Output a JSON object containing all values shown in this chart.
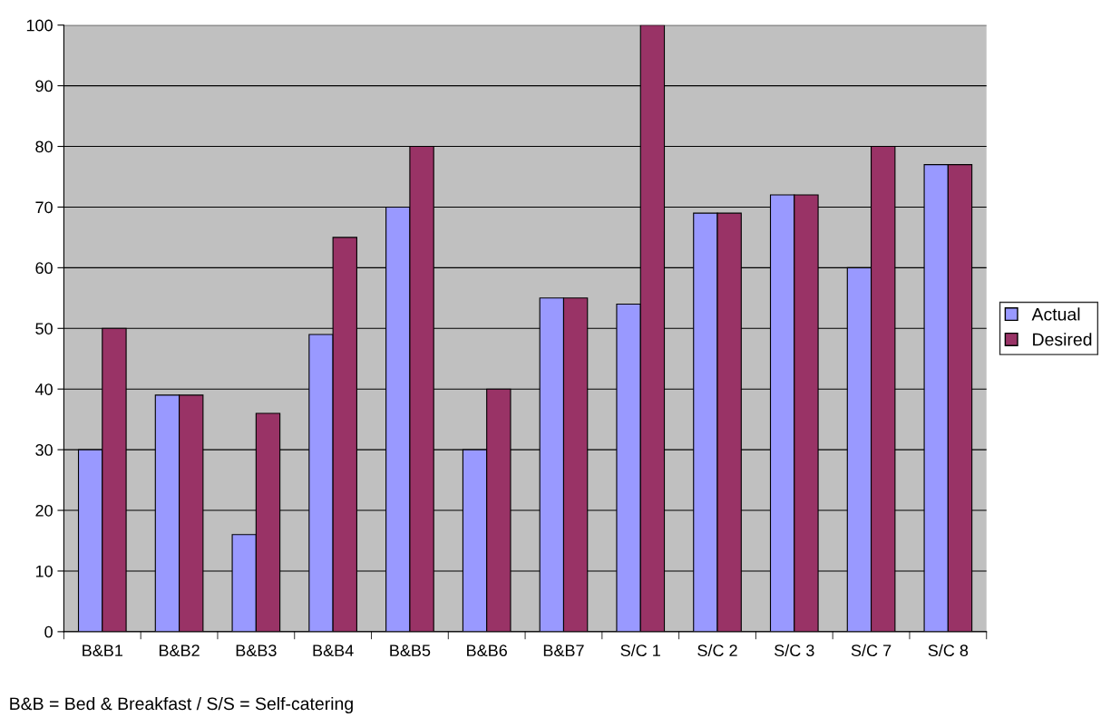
{
  "chart_data": {
    "type": "bar",
    "categories": [
      "B&B1",
      "B&B2",
      "B&B3",
      "B&B4",
      "B&B5",
      "B&B6",
      "B&B7",
      "S/C 1",
      "S/C 2",
      "S/C 3",
      "S/C 7",
      "S/C 8"
    ],
    "series": [
      {
        "name": "Actual",
        "color": "#9999ff",
        "values": [
          30,
          39,
          16,
          49,
          70,
          30,
          55,
          54,
          69,
          72,
          60,
          77
        ]
      },
      {
        "name": "Desired",
        "color": "#993366",
        "values": [
          50,
          39,
          36,
          65,
          80,
          40,
          55,
          100,
          69,
          72,
          80,
          77
        ]
      }
    ],
    "ylim": [
      0,
      100
    ],
    "yticks": [
      0,
      10,
      20,
      30,
      40,
      50,
      60,
      70,
      80,
      90,
      100
    ],
    "grid": "y",
    "legend": "right",
    "annotations": [
      "B&B = Bed & Breakfast / S/S = Self-catering"
    ]
  }
}
